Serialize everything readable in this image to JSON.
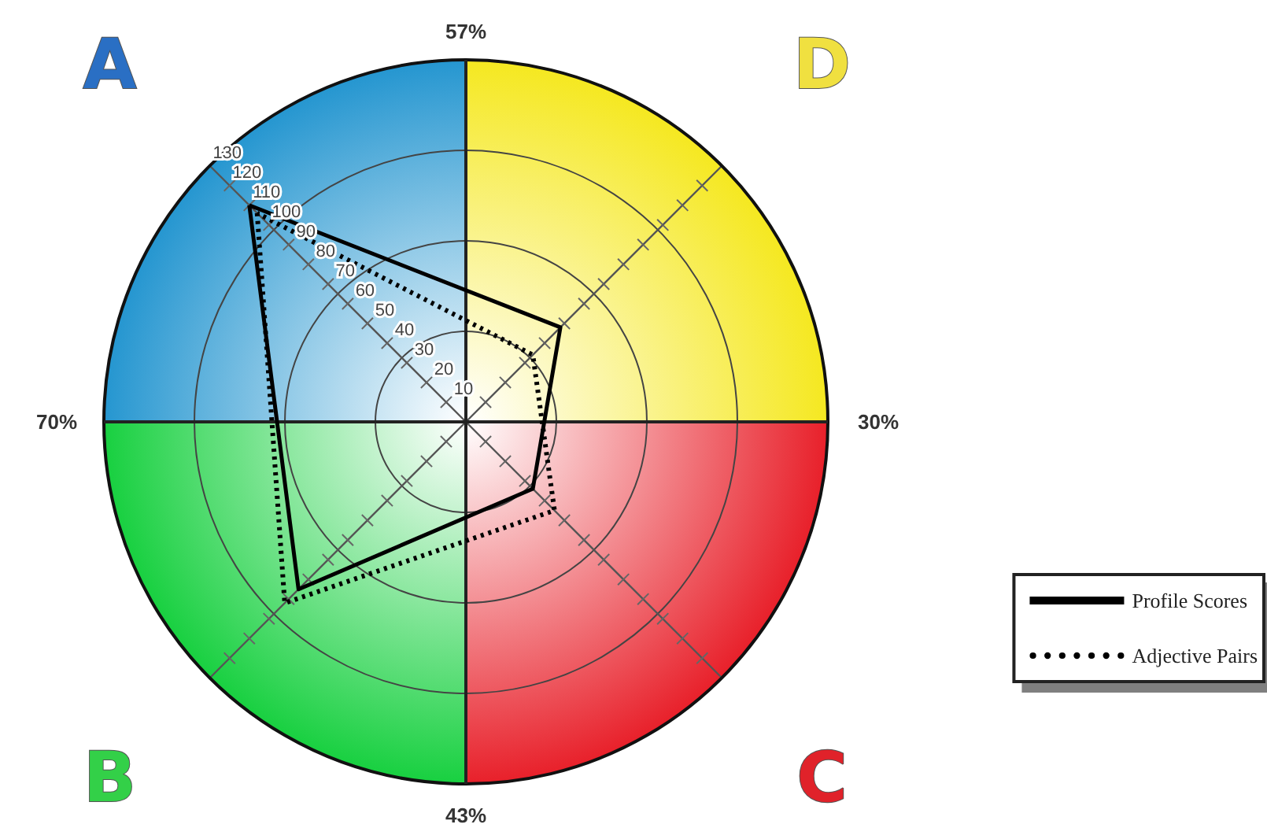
{
  "chart_data": {
    "type": "radar",
    "categories": [
      "A",
      "D",
      "C",
      "B"
    ],
    "ylim": [
      0,
      130
    ],
    "yticks": [
      10,
      20,
      30,
      40,
      50,
      60,
      70,
      80,
      90,
      100,
      110,
      120,
      130
    ],
    "series": [
      {
        "name": "Profile Scores",
        "color": "#000000",
        "line_style": "solid",
        "values": [
          110,
          48,
          34,
          85
        ]
      },
      {
        "name": "Adjective Pairs",
        "color": "#000000",
        "line_style": "dotted",
        "values": [
          106,
          34,
          45,
          92
        ]
      }
    ],
    "annotations": [
      "57%",
      "30%",
      "43%",
      "70%"
    ],
    "marker": "none",
    "legend": "bottom right"
  }
}
